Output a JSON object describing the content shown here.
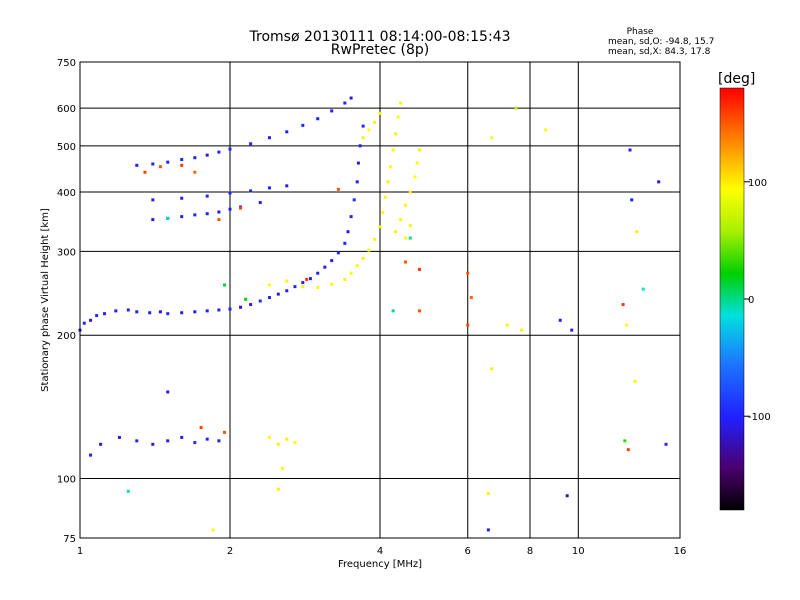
{
  "chart_data": {
    "type": "scatter",
    "title": "Tromsø 20130111 08:14:00-08:15:43",
    "subtitle": "RwPretec (8p)",
    "xlabel": "Frequency [MHz]",
    "ylabel": "Stationary phase Virtual Height [km]",
    "xscale": "log",
    "yscale": "log",
    "xlim": [
      1,
      16
    ],
    "ylim": [
      75,
      750
    ],
    "x_ticks": [
      1,
      2,
      4,
      6,
      8,
      10,
      16
    ],
    "y_ticks": [
      75,
      100,
      200,
      300,
      400,
      500,
      600,
      750
    ],
    "grid": true,
    "stats": {
      "heading": "Phase",
      "line_o": "mean, sd,O: -94.8, 15.7",
      "line_x": "mean, sd,X:  84.3, 17.8"
    },
    "colorbar": {
      "label": "[deg]",
      "range": [
        -180,
        180
      ],
      "ticks": [
        100,
        0,
        -100
      ]
    },
    "series": [
      {
        "points": [
          [
            1.0,
            205,
            -105
          ],
          [
            1.02,
            212,
            -100
          ],
          [
            1.05,
            215,
            -110
          ],
          [
            1.08,
            220,
            -95
          ],
          [
            1.12,
            222,
            -100
          ],
          [
            1.18,
            225,
            -105
          ],
          [
            1.25,
            226,
            -98
          ],
          [
            1.3,
            224,
            -102
          ],
          [
            1.38,
            223,
            -100
          ],
          [
            1.45,
            224,
            -110
          ],
          [
            1.5,
            222,
            -95
          ],
          [
            1.6,
            223,
            -100
          ],
          [
            1.7,
            224,
            -105
          ],
          [
            1.8,
            225,
            -100
          ],
          [
            1.9,
            226,
            -98
          ],
          [
            2.0,
            227,
            -100
          ],
          [
            2.1,
            229,
            -110
          ],
          [
            2.2,
            232,
            -100
          ],
          [
            2.3,
            236,
            -95
          ],
          [
            2.4,
            240,
            -100
          ],
          [
            2.5,
            244,
            -105
          ],
          [
            2.6,
            248,
            -100
          ],
          [
            2.7,
            253,
            -98
          ],
          [
            2.8,
            258,
            -100
          ],
          [
            2.9,
            263,
            -102
          ],
          [
            3.0,
            270,
            -100
          ],
          [
            3.1,
            278,
            -105
          ],
          [
            3.2,
            287,
            -100
          ],
          [
            3.3,
            298,
            -98
          ],
          [
            3.4,
            312,
            -100
          ],
          [
            3.45,
            330,
            -110
          ],
          [
            3.5,
            355,
            -100
          ],
          [
            3.55,
            385,
            -95
          ],
          [
            3.6,
            420,
            -100
          ],
          [
            3.62,
            460,
            -105
          ],
          [
            3.65,
            500,
            -100
          ],
          [
            3.7,
            550,
            -95
          ],
          [
            1.3,
            455,
            -100
          ],
          [
            1.4,
            458,
            -105
          ],
          [
            1.5,
            462,
            -100
          ],
          [
            1.6,
            468,
            -98
          ],
          [
            1.7,
            472,
            -100
          ],
          [
            1.8,
            478,
            -110
          ],
          [
            1.9,
            485,
            -100
          ],
          [
            2.0,
            492,
            -95
          ],
          [
            2.2,
            505,
            -100
          ],
          [
            2.4,
            520,
            -105
          ],
          [
            2.6,
            535,
            -100
          ],
          [
            2.8,
            552,
            -98
          ],
          [
            3.0,
            570,
            -100
          ],
          [
            3.2,
            592,
            -105
          ],
          [
            3.4,
            615,
            -100
          ],
          [
            3.5,
            630,
            -110
          ],
          [
            1.4,
            350,
            -100
          ],
          [
            1.5,
            352,
            -105
          ],
          [
            1.6,
            355,
            -100
          ],
          [
            1.7,
            358,
            -98
          ],
          [
            1.8,
            360,
            -100
          ],
          [
            1.9,
            363,
            -110
          ],
          [
            2.0,
            368,
            -100
          ],
          [
            2.1,
            372,
            -95
          ],
          [
            2.3,
            380,
            -100
          ],
          [
            1.4,
            385,
            -105
          ],
          [
            1.6,
            388,
            -100
          ],
          [
            1.8,
            392,
            -98
          ],
          [
            2.0,
            398,
            -100
          ],
          [
            2.2,
            402,
            -102
          ],
          [
            2.4,
            408,
            -100
          ],
          [
            2.6,
            412,
            -105
          ],
          [
            1.05,
            112,
            -100
          ],
          [
            1.1,
            118,
            -105
          ],
          [
            1.2,
            122,
            -100
          ],
          [
            1.3,
            120,
            -98
          ],
          [
            1.4,
            118,
            -100
          ],
          [
            1.5,
            120,
            -110
          ],
          [
            1.6,
            122,
            -100
          ],
          [
            1.7,
            119,
            -95
          ],
          [
            1.8,
            121,
            -100
          ],
          [
            1.9,
            120,
            -105
          ],
          [
            1.5,
            152,
            -110
          ],
          [
            6.6,
            78,
            -100
          ],
          [
            9.5,
            92,
            -120
          ],
          [
            9.7,
            205,
            -100
          ],
          [
            12.7,
            490,
            -100
          ],
          [
            12.8,
            385,
            -100
          ],
          [
            14.5,
            420,
            -110
          ],
          [
            15.0,
            118,
            -95
          ],
          [
            9.2,
            215,
            -100
          ]
        ]
      },
      {
        "points": [
          [
            2.4,
            255,
            95
          ],
          [
            2.6,
            260,
            90
          ],
          [
            2.8,
            253,
            100
          ],
          [
            3.0,
            252,
            95
          ],
          [
            3.2,
            256,
            90
          ],
          [
            3.4,
            262,
            100
          ],
          [
            3.5,
            270,
            95
          ],
          [
            3.6,
            280,
            90
          ],
          [
            3.7,
            290,
            100
          ],
          [
            3.8,
            302,
            95
          ],
          [
            3.9,
            318,
            90
          ],
          [
            4.0,
            338,
            100
          ],
          [
            4.05,
            362,
            95
          ],
          [
            4.1,
            390,
            90
          ],
          [
            4.15,
            420,
            100
          ],
          [
            4.2,
            452,
            95
          ],
          [
            4.25,
            490,
            90
          ],
          [
            4.3,
            530,
            100
          ],
          [
            4.35,
            575,
            95
          ],
          [
            4.4,
            615,
            90
          ],
          [
            4.3,
            330,
            100
          ],
          [
            4.4,
            350,
            95
          ],
          [
            4.5,
            375,
            90
          ],
          [
            4.6,
            400,
            100
          ],
          [
            4.7,
            430,
            95
          ],
          [
            4.75,
            460,
            90
          ],
          [
            4.8,
            490,
            100
          ],
          [
            4.5,
            320,
            95
          ],
          [
            4.6,
            340,
            90
          ],
          [
            3.7,
            520,
            100
          ],
          [
            3.8,
            540,
            95
          ],
          [
            3.9,
            560,
            90
          ],
          [
            4.0,
            585,
            100
          ],
          [
            2.4,
            122,
            95
          ],
          [
            2.5,
            118,
            90
          ],
          [
            2.6,
            121,
            100
          ],
          [
            2.7,
            119,
            95
          ],
          [
            1.85,
            78,
            90
          ],
          [
            2.5,
            95,
            100
          ],
          [
            2.55,
            105,
            95
          ],
          [
            6.6,
            93,
            90
          ],
          [
            6.7,
            170,
            100
          ],
          [
            6.7,
            520,
            95
          ],
          [
            7.2,
            210,
            90
          ],
          [
            7.7,
            205,
            100
          ],
          [
            8.6,
            540,
            95
          ],
          [
            13.0,
            160,
            90
          ],
          [
            13.1,
            330,
            100
          ],
          [
            12.5,
            210,
            95
          ],
          [
            7.5,
            600,
            60
          ]
        ]
      },
      {
        "points": [
          [
            1.35,
            440,
            155
          ],
          [
            1.45,
            452,
            150
          ],
          [
            1.6,
            455,
            160
          ],
          [
            1.7,
            440,
            145
          ],
          [
            1.9,
            350,
            150
          ],
          [
            2.1,
            370,
            155
          ],
          [
            4.5,
            285,
            150
          ],
          [
            4.8,
            275,
            160
          ],
          [
            6.0,
            270,
            150
          ],
          [
            6.0,
            210,
            155
          ],
          [
            6.1,
            240,
            145
          ],
          [
            4.8,
            225,
            150
          ],
          [
            12.3,
            232,
            160
          ],
          [
            12.6,
            115,
            155
          ],
          [
            1.95,
            125,
            150
          ],
          [
            3.3,
            405,
            150
          ],
          [
            1.75,
            128,
            155
          ],
          [
            2.85,
            262,
            160
          ]
        ]
      },
      {
        "points": [
          [
            1.25,
            94,
            -10
          ],
          [
            2.15,
            238,
            20
          ],
          [
            1.5,
            352,
            -20
          ],
          [
            1.95,
            255,
            10
          ],
          [
            4.6,
            320,
            -5
          ],
          [
            12.4,
            120,
            30
          ],
          [
            13.5,
            250,
            -15
          ],
          [
            4.25,
            225,
            0
          ]
        ]
      }
    ]
  }
}
